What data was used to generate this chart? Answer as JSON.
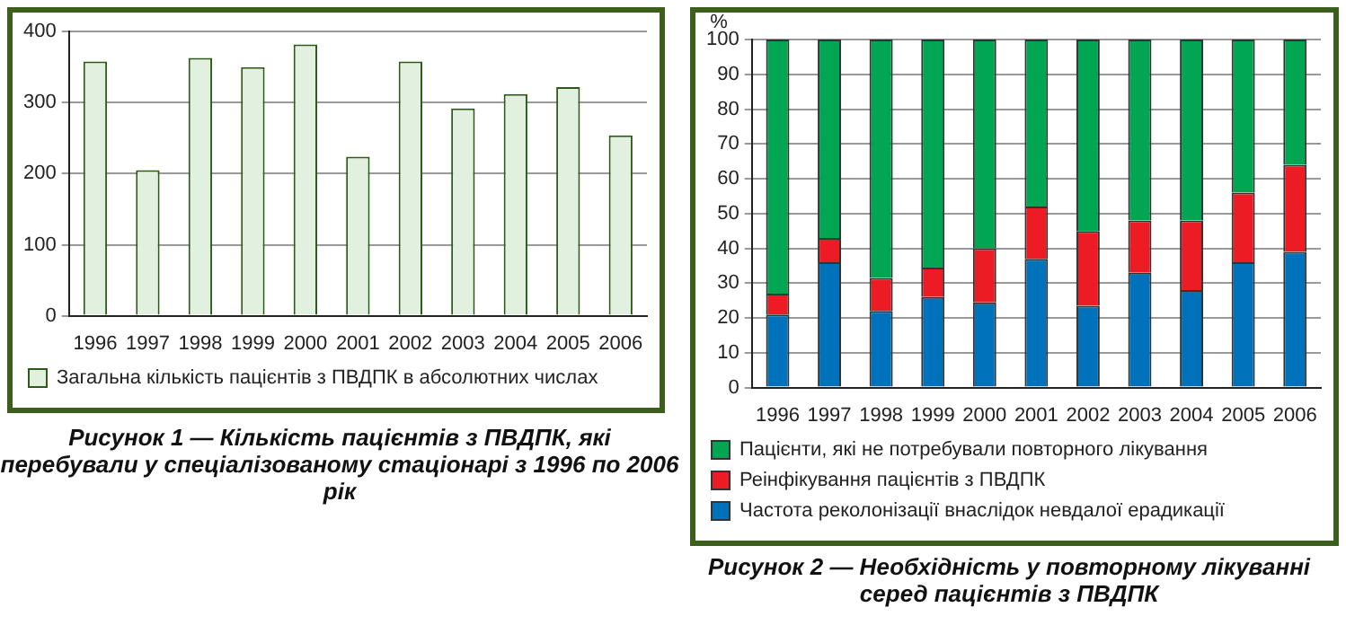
{
  "chart_data": [
    {
      "type": "bar",
      "title": "Рисунок 1 — Кількість пацієнтів з ПВДПК, які перебували у спеціалізованому стаціонарі з 1996 по 2006 рік",
      "categories": [
        "1996",
        "1997",
        "1998",
        "1999",
        "2000",
        "2001",
        "2002",
        "2003",
        "2004",
        "2005",
        "2006"
      ],
      "series": [
        {
          "name": "Загальна кількість пацієнтів з ПВДПК в абсолютних числах",
          "color": "#e2f0e0",
          "values": [
            358,
            205,
            363,
            350,
            382,
            224,
            358,
            292,
            312,
            322,
            254
          ]
        }
      ],
      "ylim": [
        0,
        400
      ],
      "yticks": [
        0,
        100,
        200,
        300,
        400
      ],
      "grid": "y",
      "legend": "bottom"
    },
    {
      "type": "bar",
      "title": "Рисунок 2 — Необхідність у повторному лікуванні серед пацієнтів з ПВДПК",
      "ylabel": "%",
      "categories": [
        "1996",
        "1997",
        "1998",
        "1999",
        "2000",
        "2001",
        "2002",
        "2003",
        "2004",
        "2005",
        "2006"
      ],
      "stacked": true,
      "series": [
        {
          "name": "Частота реколонізації внаслідок невдалої ерадикації",
          "color": "#0072bc",
          "values": [
            21,
            36,
            22,
            26,
            24.5,
            37,
            23.5,
            33,
            28,
            36,
            39
          ]
        },
        {
          "name": "Реінфікування пацієнтів з ПВДПК",
          "color": "#ed1c24",
          "values": [
            6,
            7,
            9.5,
            8.5,
            15.5,
            15,
            21.5,
            15,
            20,
            20,
            25
          ]
        },
        {
          "name": "Пацієнти, які не потребували повторного лікування",
          "color": "#00a651",
          "values": [
            73,
            57,
            68.5,
            65.5,
            60,
            48,
            55,
            52,
            52,
            44,
            36
          ]
        }
      ],
      "ylim": [
        0,
        100
      ],
      "yticks": [
        0,
        10,
        20,
        30,
        40,
        50,
        60,
        70,
        80,
        90,
        100
      ],
      "grid": "y",
      "legend": "bottom"
    }
  ]
}
